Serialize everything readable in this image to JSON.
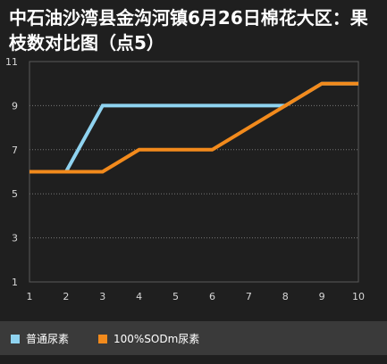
{
  "chart_data": {
    "type": "line",
    "title": "中石油沙湾县金沟河镇6月26日棉花大区：果枝数对比图（点5）",
    "x": [
      1,
      2,
      3,
      4,
      5,
      6,
      7,
      8,
      9,
      10
    ],
    "xticks": [
      "1",
      "2",
      "3",
      "4",
      "5",
      "6",
      "7",
      "8",
      "9",
      "10"
    ],
    "yticks": [
      "1",
      "3",
      "5",
      "7",
      "9",
      "11"
    ],
    "xlim": [
      1,
      10
    ],
    "ylim": [
      1,
      11
    ],
    "grid": true,
    "legend_position": "bottom",
    "series": [
      {
        "name": "普通尿素",
        "color": "#8fd3f0",
        "values": [
          6,
          6,
          9,
          9,
          9,
          9,
          9,
          9,
          10,
          10
        ]
      },
      {
        "name": "100%SODm尿素",
        "color": "#f28a1c",
        "values": [
          6,
          6,
          6,
          7,
          7,
          7,
          8,
          9,
          10,
          10
        ]
      }
    ]
  }
}
